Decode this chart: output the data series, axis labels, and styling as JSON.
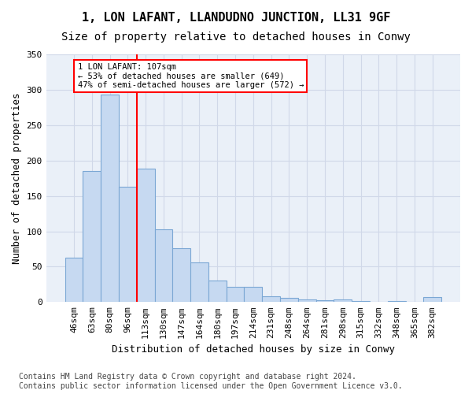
{
  "title": "1, LON LAFANT, LLANDUDNO JUNCTION, LL31 9GF",
  "subtitle": "Size of property relative to detached houses in Conwy",
  "xlabel": "Distribution of detached houses by size in Conwy",
  "ylabel": "Number of detached properties",
  "categories": [
    "46sqm",
    "63sqm",
    "80sqm",
    "96sqm",
    "113sqm",
    "130sqm",
    "147sqm",
    "164sqm",
    "180sqm",
    "197sqm",
    "214sqm",
    "231sqm",
    "248sqm",
    "264sqm",
    "281sqm",
    "298sqm",
    "315sqm",
    "332sqm",
    "348sqm",
    "365sqm",
    "382sqm"
  ],
  "values": [
    63,
    185,
    293,
    163,
    188,
    103,
    76,
    56,
    30,
    21,
    22,
    8,
    6,
    4,
    3,
    4,
    2,
    0,
    2,
    0,
    7
  ],
  "bar_color": "#c6d9f1",
  "bar_edge_color": "#7ba7d4",
  "annotation_text": "1 LON LAFANT: 107sqm\n← 53% of detached houses are smaller (649)\n47% of semi-detached houses are larger (572) →",
  "annotation_box_color": "white",
  "annotation_box_edge_color": "red",
  "vline_color": "red",
  "vline_x": 3.5,
  "ylim": [
    0,
    350
  ],
  "yticks": [
    0,
    50,
    100,
    150,
    200,
    250,
    300,
    350
  ],
  "grid_color": "#d0d8e8",
  "background_color": "#eaf0f8",
  "footer": "Contains HM Land Registry data © Crown copyright and database right 2024.\nContains public sector information licensed under the Open Government Licence v3.0.",
  "title_fontsize": 11,
  "subtitle_fontsize": 10,
  "label_fontsize": 9,
  "tick_fontsize": 8,
  "footer_fontsize": 7
}
